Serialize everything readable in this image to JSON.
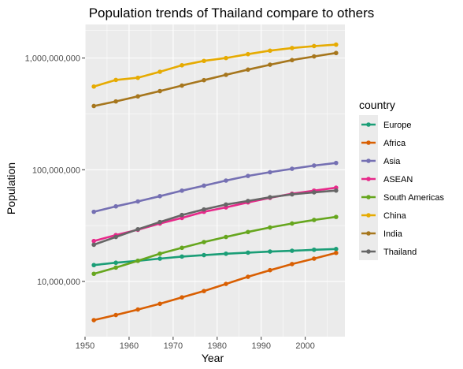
{
  "chart_data": {
    "type": "line",
    "title": "Population trends of Thailand compare to others",
    "xlabel": "Year",
    "ylabel": "Population",
    "y_scale": "log10",
    "xlim": [
      1950,
      2009
    ],
    "ylim": [
      3200000,
      2000000000
    ],
    "x_ticks": [
      1950,
      1960,
      1970,
      1980,
      1990,
      2000
    ],
    "x_tick_labels": [
      "1950",
      "1960",
      "1970",
      "1980",
      "1990",
      "2000"
    ],
    "y_ticks": [
      10000000,
      100000000,
      1000000000
    ],
    "y_tick_labels": [
      "10,000,000",
      "100,000,000",
      "1,000,000,000"
    ],
    "grid": true,
    "legend_title": "country",
    "legend_position": "right",
    "x": [
      1952,
      1957,
      1962,
      1967,
      1972,
      1977,
      1982,
      1987,
      1992,
      1997,
      2002,
      2007
    ],
    "series": [
      {
        "name": "Europe",
        "color": "#1b9e77",
        "values": [
          14000000,
          14700000,
          15300000,
          16000000,
          16700000,
          17200000,
          17700000,
          18100000,
          18500000,
          18800000,
          19200000,
          19500000
        ]
      },
      {
        "name": "Africa",
        "color": "#d95f02",
        "values": [
          4500000,
          5000000,
          5600000,
          6300000,
          7200000,
          8200000,
          9500000,
          11000000,
          12600000,
          14300000,
          16000000,
          18000000
        ]
      },
      {
        "name": "Asia",
        "color": "#7570b3",
        "values": [
          42000000,
          47000000,
          52000000,
          58000000,
          65000000,
          72000000,
          80000000,
          88000000,
          95000000,
          102000000,
          109000000,
          115000000
        ]
      },
      {
        "name": "ASEAN",
        "color": "#e7298a",
        "values": [
          23000000,
          26000000,
          29000000,
          33000000,
          37000000,
          42000000,
          46000000,
          51000000,
          56000000,
          61000000,
          65000000,
          69000000
        ]
      },
      {
        "name": "South Americas",
        "color": "#66a61e",
        "values": [
          11700000,
          13300000,
          15300000,
          17700000,
          20000000,
          22500000,
          25000000,
          27700000,
          30400000,
          33000000,
          35500000,
          37800000
        ]
      },
      {
        "name": "China",
        "color": "#e6ab02",
        "values": [
          556000000,
          637000000,
          666000000,
          754000000,
          862000000,
          943000000,
          1000000000,
          1084000000,
          1165000000,
          1230000000,
          1280000000,
          1319000000
        ]
      },
      {
        "name": "India",
        "color": "#a6761d",
        "values": [
          372000000,
          409000000,
          454000000,
          506000000,
          567000000,
          634000000,
          708000000,
          788000000,
          872000000,
          959000000,
          1034000000,
          1110000000
        ]
      },
      {
        "name": "Thailand",
        "color": "#666666",
        "values": [
          21300000,
          25000000,
          29300000,
          34000000,
          39300000,
          44100000,
          48800000,
          52500000,
          56700000,
          60200000,
          62800000,
          65100000
        ]
      }
    ]
  }
}
